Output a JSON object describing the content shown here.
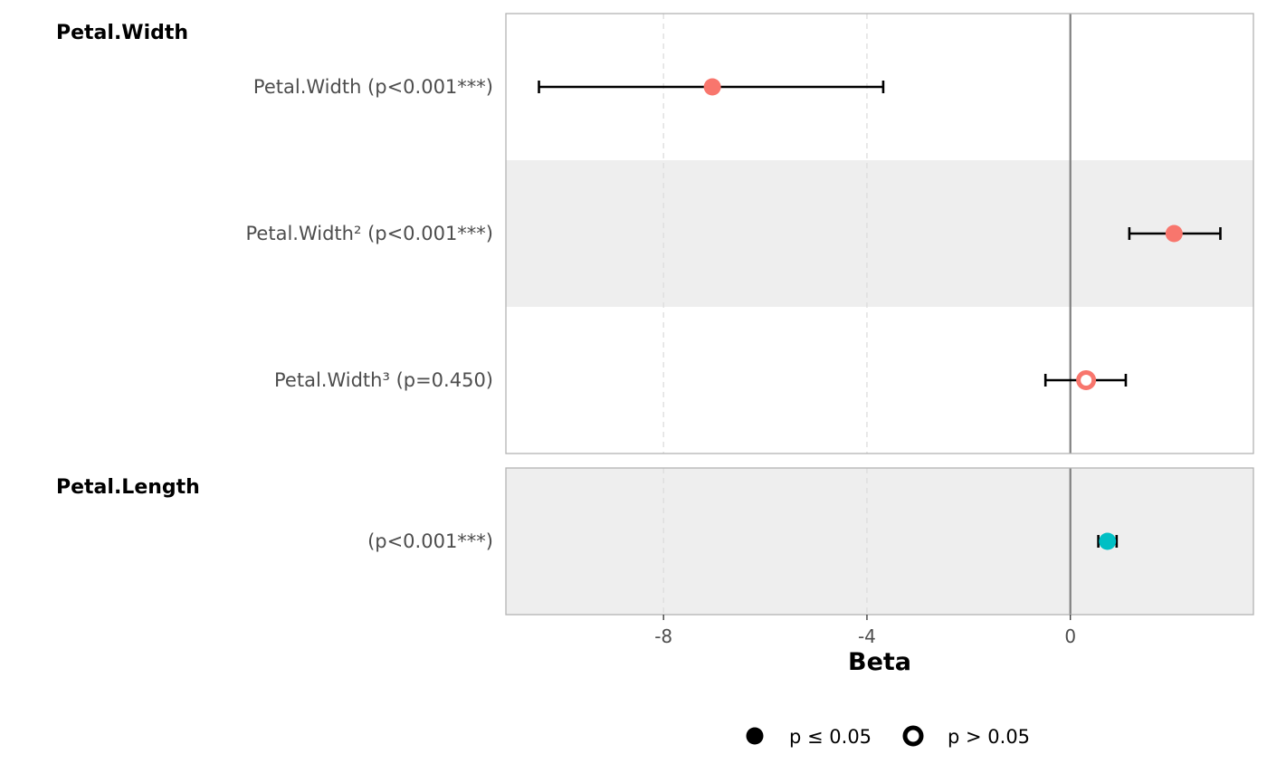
{
  "chart_data": {
    "type": "forest",
    "xlabel": "Beta",
    "xlim": [
      -11.1,
      3.6
    ],
    "xticks": [
      -8,
      -4,
      0
    ],
    "xtick_labels": [
      "-8",
      "-4",
      "0"
    ],
    "reference_line": 0,
    "grid": "vertical-dashed",
    "colors": {
      "Petal.Width": "#F8766D",
      "Petal.Length": "#00BFC4"
    },
    "groups": [
      {
        "name": "Petal.Width",
        "rows": [
          {
            "label": "Petal.Width (p<0.001***)",
            "estimate": -7.04,
            "ci_low": -10.45,
            "ci_high": -3.68,
            "significant": true,
            "shaded": false
          },
          {
            "label": "Petal.Width² (p<0.001***)",
            "estimate": 2.04,
            "ci_low": 1.16,
            "ci_high": 2.95,
            "significant": true,
            "shaded": true
          },
          {
            "label": "Petal.Width³ (p=0.450)",
            "estimate": 0.31,
            "ci_low": -0.49,
            "ci_high": 1.09,
            "significant": false,
            "shaded": false
          }
        ]
      },
      {
        "name": "Petal.Length",
        "rows": [
          {
            "label": "(p<0.001***)",
            "estimate": 0.73,
            "ci_low": 0.55,
            "ci_high": 0.91,
            "significant": true,
            "shaded": true
          }
        ]
      }
    ],
    "legend": {
      "position": "bottom",
      "items": [
        {
          "label": "p ≤ 0.05",
          "marker": "filled"
        },
        {
          "label": "p > 0.05",
          "marker": "open"
        }
      ]
    }
  }
}
